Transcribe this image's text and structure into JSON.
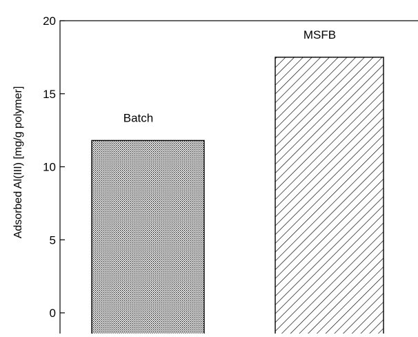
{
  "chart_data": {
    "type": "bar",
    "title": "",
    "xlabel": "",
    "ylabel": "Adsorbed Al(III) [mg/g polymer]",
    "ylim": [
      0,
      20
    ],
    "yticks": [
      0,
      5,
      10,
      15,
      20
    ],
    "grid": false,
    "categories": [
      "Batch",
      "MSFB"
    ],
    "values": [
      11.8,
      17.5
    ],
    "patterns": [
      "dense-dot",
      "diagonal-hatch"
    ],
    "colors": {
      "bar_stroke": "#000000",
      "pattern_ink": "#000000",
      "background": "#ffffff"
    }
  }
}
